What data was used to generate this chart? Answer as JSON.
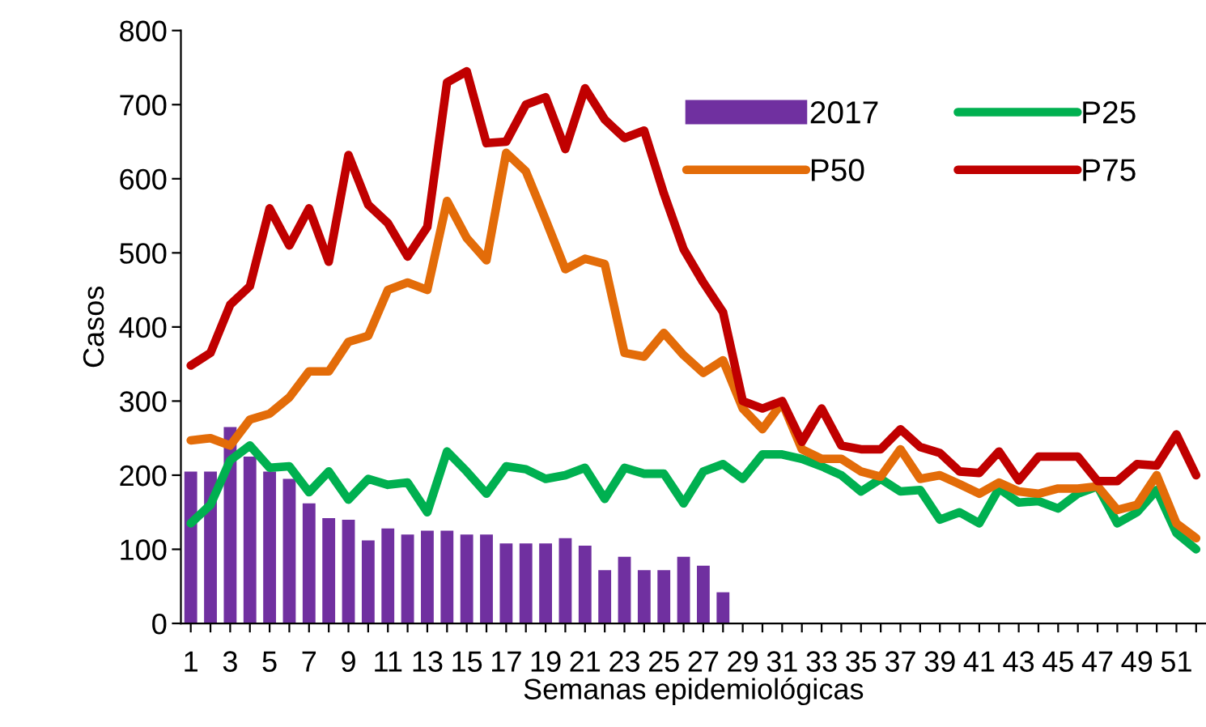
{
  "chart_data": {
    "type": "bar",
    "xlabel": "Semanas epidemiológicas",
    "ylabel": "Casos",
    "categories": [
      "1",
      null,
      "3",
      null,
      "5",
      null,
      "7",
      null,
      "9",
      null,
      "11",
      null,
      "13",
      null,
      "15",
      null,
      "17",
      null,
      "19",
      null,
      "21",
      null,
      "23",
      null,
      "25",
      null,
      "27",
      null,
      "29",
      null,
      "31",
      null,
      "33",
      null,
      "35",
      null,
      "37",
      null,
      "39",
      null,
      "41",
      null,
      "43",
      null,
      "45",
      null,
      "47",
      null,
      "49",
      null,
      "51",
      null
    ],
    "series": [
      {
        "name": "2017",
        "color": "#7030a0",
        "values": [
          205,
          205,
          265,
          225,
          205,
          195,
          162,
          142,
          140,
          112,
          128,
          120,
          125,
          125,
          120,
          120,
          108,
          108,
          108,
          115,
          105,
          72,
          90,
          72,
          72,
          90,
          78,
          42,
          null,
          null,
          null,
          null,
          null,
          null,
          null,
          null,
          null,
          null,
          null,
          null,
          null,
          null,
          null,
          null,
          null,
          null,
          null,
          null,
          null,
          null,
          null,
          null
        ]
      },
      {
        "name": "P25",
        "type": "line",
        "color": "#00b050",
        "values": [
          135,
          160,
          220,
          240,
          210,
          212,
          177,
          205,
          167,
          195,
          187,
          190,
          150,
          232,
          205,
          175,
          212,
          208,
          195,
          200,
          210,
          168,
          210,
          202,
          202,
          162,
          205,
          215,
          195,
          228,
          228,
          222,
          212,
          200,
          178,
          195,
          178,
          180,
          140,
          150,
          135,
          182,
          163,
          165,
          155,
          175,
          185,
          135,
          150,
          180,
          122,
          100
        ]
      },
      {
        "name": "P50",
        "type": "line",
        "color": "#e36c09",
        "values": [
          247,
          250,
          240,
          275,
          283,
          305,
          340,
          340,
          380,
          388,
          450,
          460,
          450,
          570,
          520,
          490,
          635,
          610,
          545,
          478,
          492,
          485,
          365,
          360,
          392,
          362,
          338,
          355,
          290,
          262,
          298,
          235,
          222,
          222,
          205,
          198,
          235,
          195,
          200,
          188,
          175,
          190,
          178,
          175,
          182,
          182,
          185,
          153,
          160,
          200,
          135,
          115
        ]
      },
      {
        "name": "P75",
        "type": "line",
        "color": "#c00000",
        "values": [
          348,
          365,
          430,
          455,
          560,
          510,
          560,
          488,
          632,
          565,
          540,
          495,
          535,
          730,
          745,
          648,
          650,
          700,
          710,
          640,
          722,
          680,
          655,
          665,
          580,
          505,
          460,
          420,
          300,
          290,
          300,
          245,
          290,
          240,
          235,
          235,
          262,
          238,
          230,
          205,
          203,
          232,
          193,
          225,
          225,
          225,
          192,
          192,
          215,
          213,
          255,
          200
        ]
      }
    ],
    "ylim": [
      0,
      800
    ],
    "yticks": [
      0,
      100,
      200,
      300,
      400,
      500,
      600,
      700,
      800
    ],
    "legend": "top right",
    "line_style": "solid",
    "marker": "none"
  }
}
